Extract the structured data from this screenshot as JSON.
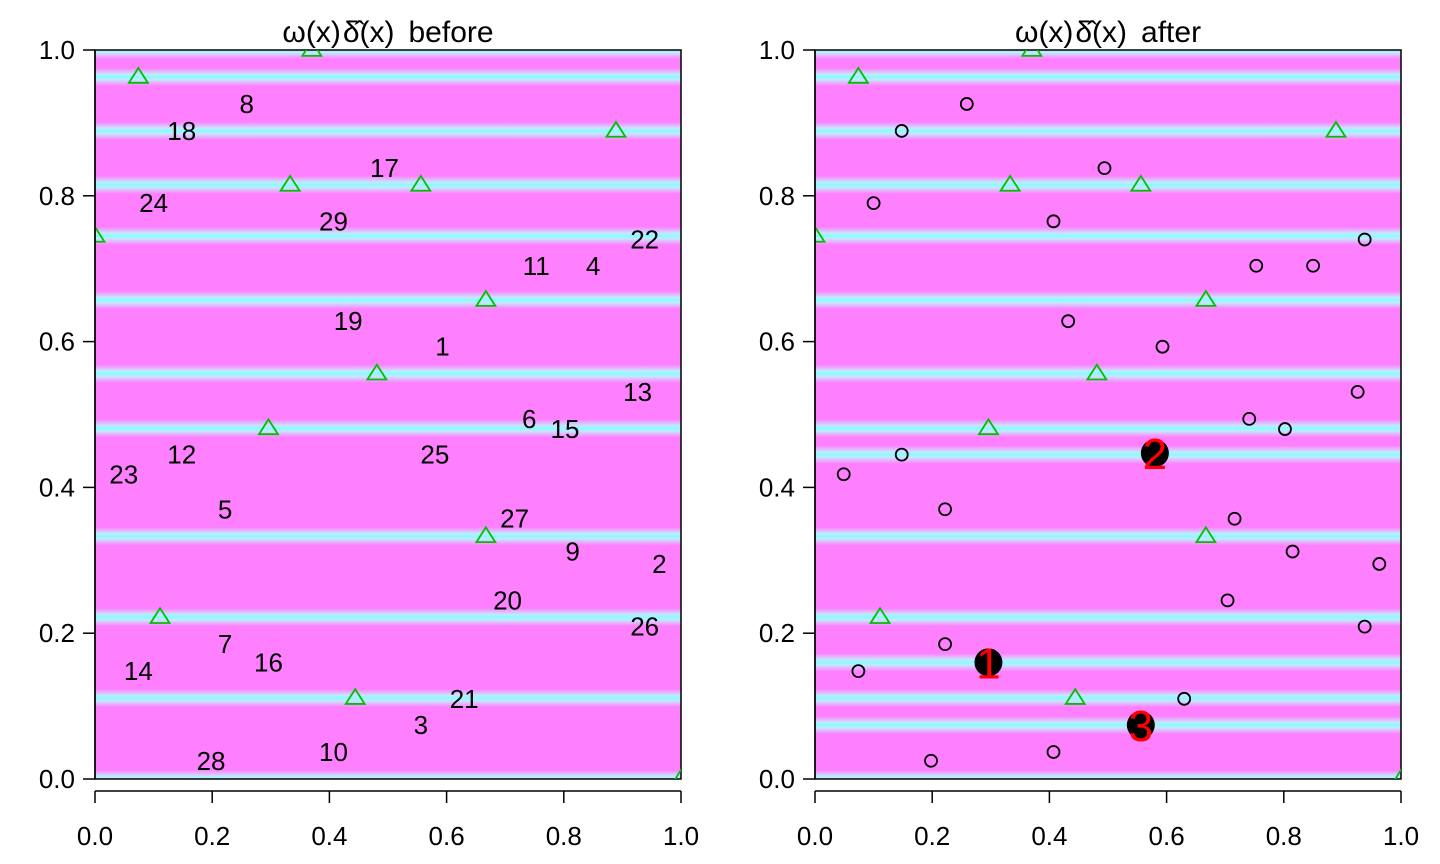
{
  "chart_data": [
    {
      "type": "scatter",
      "title_parts": [
        "ω(x)",
        "δ̂(x)",
        "before"
      ],
      "xlim": [
        0,
        1
      ],
      "ylim": [
        0,
        1
      ],
      "xticks": [
        "0.0",
        "0.2",
        "0.4",
        "0.6",
        "0.8",
        "1.0"
      ],
      "yticks": [
        "0.0",
        "0.2",
        "0.4",
        "0.6",
        "0.8",
        "1.0"
      ],
      "background": {
        "base_color": "#ff80ff",
        "band_color": "#80ffff",
        "bands_y": [
          0.0,
          0.111,
          0.222,
          0.333,
          0.481,
          0.556,
          0.657,
          0.745,
          0.815,
          0.889,
          0.963,
          1.0
        ]
      },
      "triangles": {
        "color": "#00c000",
        "points": [
          {
            "x": 0.074,
            "y": 0.963
          },
          {
            "x": 0.37,
            "y": 1.0
          },
          {
            "x": 0.889,
            "y": 0.889
          },
          {
            "x": 0.333,
            "y": 0.815
          },
          {
            "x": 0.556,
            "y": 0.815
          },
          {
            "x": 0.0,
            "y": 0.745
          },
          {
            "x": 0.667,
            "y": 0.657
          },
          {
            "x": 0.481,
            "y": 0.556
          },
          {
            "x": 0.296,
            "y": 0.481
          },
          {
            "x": 0.667,
            "y": 0.333
          },
          {
            "x": 0.111,
            "y": 0.222
          },
          {
            "x": 0.444,
            "y": 0.111
          },
          {
            "x": 1.0,
            "y": 0.0
          }
        ]
      },
      "labels": [
        {
          "text": "8",
          "x": 0.259,
          "y": 0.926
        },
        {
          "text": "18",
          "x": 0.148,
          "y": 0.889
        },
        {
          "text": "17",
          "x": 0.494,
          "y": 0.838
        },
        {
          "text": "24",
          "x": 0.1,
          "y": 0.79
        },
        {
          "text": "29",
          "x": 0.407,
          "y": 0.765
        },
        {
          "text": "22",
          "x": 0.938,
          "y": 0.74
        },
        {
          "text": "11",
          "x": 0.753,
          "y": 0.704
        },
        {
          "text": "4",
          "x": 0.85,
          "y": 0.704
        },
        {
          "text": "19",
          "x": 0.432,
          "y": 0.628
        },
        {
          "text": "1",
          "x": 0.593,
          "y": 0.593
        },
        {
          "text": "13",
          "x": 0.926,
          "y": 0.531
        },
        {
          "text": "6",
          "x": 0.741,
          "y": 0.494
        },
        {
          "text": "15",
          "x": 0.802,
          "y": 0.48
        },
        {
          "text": "25",
          "x": 0.58,
          "y": 0.445
        },
        {
          "text": "12",
          "x": 0.148,
          "y": 0.445
        },
        {
          "text": "23",
          "x": 0.049,
          "y": 0.418
        },
        {
          "text": "5",
          "x": 0.222,
          "y": 0.37
        },
        {
          "text": "27",
          "x": 0.716,
          "y": 0.357
        },
        {
          "text": "9",
          "x": 0.815,
          "y": 0.312
        },
        {
          "text": "2",
          "x": 0.963,
          "y": 0.295
        },
        {
          "text": "20",
          "x": 0.704,
          "y": 0.245
        },
        {
          "text": "26",
          "x": 0.938,
          "y": 0.209
        },
        {
          "text": "7",
          "x": 0.222,
          "y": 0.185
        },
        {
          "text": "16",
          "x": 0.296,
          "y": 0.16
        },
        {
          "text": "14",
          "x": 0.074,
          "y": 0.148
        },
        {
          "text": "21",
          "x": 0.63,
          "y": 0.11
        },
        {
          "text": "3",
          "x": 0.556,
          "y": 0.074
        },
        {
          "text": "10",
          "x": 0.407,
          "y": 0.037
        },
        {
          "text": "28",
          "x": 0.198,
          "y": 0.025
        }
      ]
    },
    {
      "type": "scatter",
      "title_parts": [
        "ω(x)",
        "δ̂(x)",
        "after"
      ],
      "xlim": [
        0,
        1
      ],
      "ylim": [
        0,
        1
      ],
      "xticks": [
        "0.0",
        "0.2",
        "0.4",
        "0.6",
        "0.8",
        "1.0"
      ],
      "yticks": [
        "0.0",
        "0.2",
        "0.4",
        "0.6",
        "0.8",
        "1.0"
      ],
      "background": {
        "base_color": "#ff80ff",
        "band_color": "#80ffff",
        "bands_y": [
          0.0,
          0.074,
          0.111,
          0.16,
          0.222,
          0.333,
          0.445,
          0.481,
          0.556,
          0.657,
          0.745,
          0.815,
          0.889,
          0.963,
          1.0
        ]
      },
      "triangles": {
        "color": "#00c000",
        "points": [
          {
            "x": 0.074,
            "y": 0.963
          },
          {
            "x": 0.37,
            "y": 1.0
          },
          {
            "x": 0.889,
            "y": 0.889
          },
          {
            "x": 0.333,
            "y": 0.815
          },
          {
            "x": 0.556,
            "y": 0.815
          },
          {
            "x": 0.0,
            "y": 0.745
          },
          {
            "x": 0.667,
            "y": 0.657
          },
          {
            "x": 0.481,
            "y": 0.556
          },
          {
            "x": 0.296,
            "y": 0.481
          },
          {
            "x": 0.667,
            "y": 0.333
          },
          {
            "x": 0.111,
            "y": 0.222
          },
          {
            "x": 0.444,
            "y": 0.111
          },
          {
            "x": 1.0,
            "y": 0.0
          }
        ]
      },
      "circles": [
        {
          "x": 0.259,
          "y": 0.926
        },
        {
          "x": 0.148,
          "y": 0.889
        },
        {
          "x": 0.494,
          "y": 0.838
        },
        {
          "x": 0.1,
          "y": 0.79
        },
        {
          "x": 0.407,
          "y": 0.765
        },
        {
          "x": 0.938,
          "y": 0.74
        },
        {
          "x": 0.753,
          "y": 0.704
        },
        {
          "x": 0.85,
          "y": 0.704
        },
        {
          "x": 0.432,
          "y": 0.628
        },
        {
          "x": 0.593,
          "y": 0.593
        },
        {
          "x": 0.926,
          "y": 0.531
        },
        {
          "x": 0.741,
          "y": 0.494
        },
        {
          "x": 0.802,
          "y": 0.48
        },
        {
          "x": 0.148,
          "y": 0.445
        },
        {
          "x": 0.049,
          "y": 0.418
        },
        {
          "x": 0.222,
          "y": 0.37
        },
        {
          "x": 0.716,
          "y": 0.357
        },
        {
          "x": 0.815,
          "y": 0.312
        },
        {
          "x": 0.963,
          "y": 0.295
        },
        {
          "x": 0.704,
          "y": 0.245
        },
        {
          "x": 0.938,
          "y": 0.209
        },
        {
          "x": 0.222,
          "y": 0.185
        },
        {
          "x": 0.074,
          "y": 0.148
        },
        {
          "x": 0.63,
          "y": 0.11
        },
        {
          "x": 0.407,
          "y": 0.037
        },
        {
          "x": 0.198,
          "y": 0.025
        }
      ],
      "selected": [
        {
          "text": "1",
          "x": 0.296,
          "y": 0.16
        },
        {
          "text": "2",
          "x": 0.58,
          "y": 0.447
        },
        {
          "text": "3",
          "x": 0.556,
          "y": 0.074
        }
      ]
    }
  ]
}
